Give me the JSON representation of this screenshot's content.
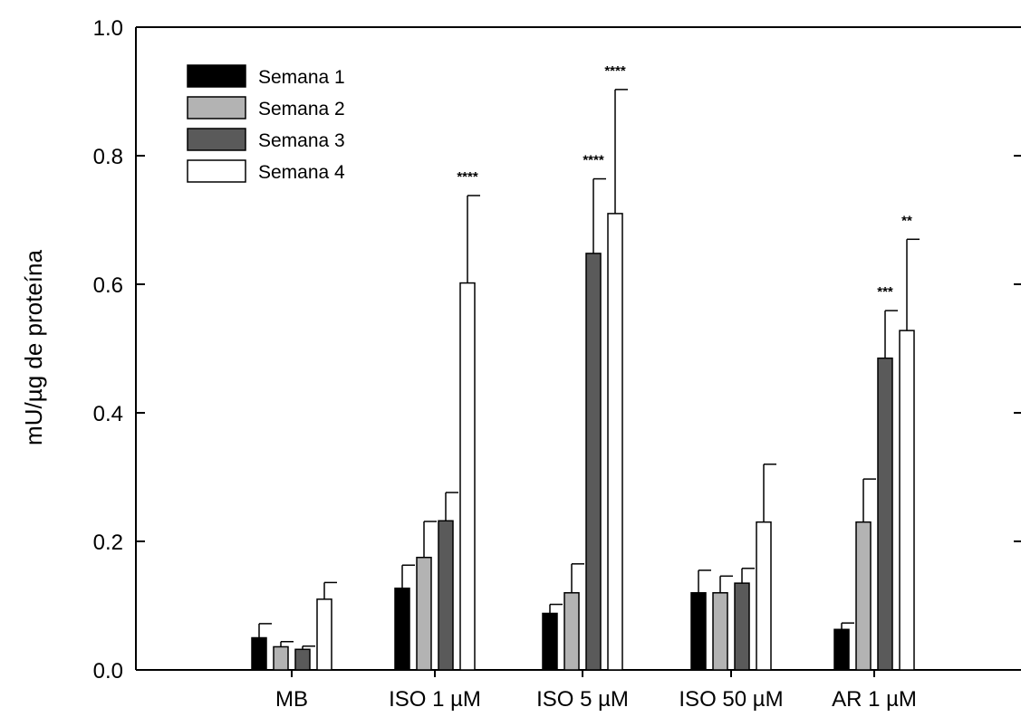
{
  "chart_data": {
    "type": "bar",
    "title": "",
    "xlabel": "",
    "ylabel": "mU/µg de proteína",
    "ylim": [
      0,
      1.0
    ],
    "yticks": [
      "0.0",
      "0.2",
      "0.4",
      "0.6",
      "0.8",
      "1.0"
    ],
    "categories": [
      "MB",
      "ISO 1 µM",
      "ISO 5 µM",
      "ISO 50 µM",
      "AR 1 µM"
    ],
    "legend_position": "top-left",
    "grid": false,
    "series": [
      {
        "name": "Semana 1",
        "color": "#000000",
        "values": [
          0.05,
          0.127,
          0.088,
          0.12,
          0.063
        ],
        "errors": [
          0.022,
          0.036,
          0.014,
          0.035,
          0.01
        ],
        "sig": [
          "",
          "",
          "",
          "",
          ""
        ]
      },
      {
        "name": "Semana 2",
        "color": "#b3b3b3",
        "values": [
          0.036,
          0.175,
          0.12,
          0.12,
          0.23
        ],
        "errors": [
          0.008,
          0.056,
          0.045,
          0.026,
          0.067
        ],
        "sig": [
          "",
          "",
          "",
          "",
          ""
        ]
      },
      {
        "name": "Semana 3",
        "color": "#5a5a5a",
        "values": [
          0.032,
          0.232,
          0.648,
          0.135,
          0.485
        ],
        "errors": [
          0.005,
          0.044,
          0.116,
          0.023,
          0.074
        ],
        "sig": [
          "",
          "",
          "****",
          "",
          "***"
        ]
      },
      {
        "name": "Semana 4",
        "color": "#ffffff",
        "values": [
          0.11,
          0.602,
          0.71,
          0.23,
          0.528
        ],
        "errors": [
          0.026,
          0.136,
          0.193,
          0.09,
          0.142
        ],
        "sig": [
          "",
          "****",
          "****",
          "",
          "**"
        ]
      }
    ]
  }
}
